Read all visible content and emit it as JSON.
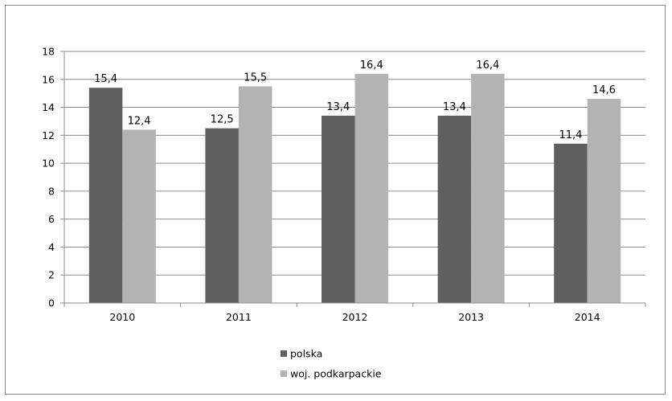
{
  "chart_data": {
    "type": "bar",
    "title": "",
    "xlabel": "",
    "ylabel": "",
    "categories": [
      "2010",
      "2011",
      "2012",
      "2013",
      "2014"
    ],
    "series": [
      {
        "name": "polska",
        "color": "#5f5f5f",
        "values": [
          15.4,
          12.5,
          13.4,
          13.4,
          11.4
        ],
        "labels": [
          "15,4",
          "12,5",
          "13,4",
          "13,4",
          "11,4"
        ]
      },
      {
        "name": "woj. podkarpackie",
        "color": "#b3b3b3",
        "values": [
          12.4,
          15.5,
          16.4,
          16.4,
          14.6
        ],
        "labels": [
          "12,4",
          "15,5",
          "16,4",
          "16,4",
          "14,6"
        ]
      }
    ],
    "ylim": [
      0,
      18
    ],
    "yticks": [
      0,
      2,
      4,
      6,
      8,
      10,
      12,
      14,
      16,
      18
    ],
    "grid": true,
    "legend_position": "bottom"
  }
}
